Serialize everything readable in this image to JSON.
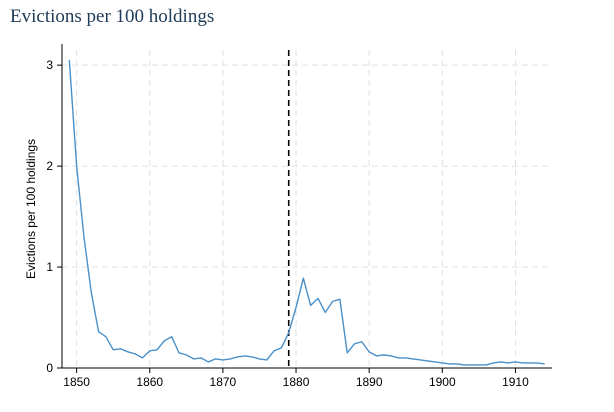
{
  "page": {
    "title": "Evictions per 100 holdings"
  },
  "chart_data": {
    "type": "line",
    "title": "",
    "xlabel": "",
    "ylabel": "Evictions per 100 holdings",
    "xlim": [
      1848,
      1915
    ],
    "ylim": [
      0,
      3.15
    ],
    "x_ticks": [
      1850,
      1860,
      1870,
      1880,
      1890,
      1900,
      1910
    ],
    "y_ticks": [
      0,
      1,
      2,
      3
    ],
    "grid": true,
    "reference_line": {
      "x": 1879,
      "style": "dashed",
      "color": "#000000"
    },
    "colors": {
      "series": "#4a90c9",
      "grid": "#e0e0e0",
      "axis": "#000000"
    },
    "series": [
      {
        "name": "",
        "x": [
          1849,
          1850,
          1851,
          1852,
          1853,
          1854,
          1855,
          1856,
          1857,
          1858,
          1859,
          1860,
          1861,
          1862,
          1863,
          1864,
          1865,
          1866,
          1867,
          1868,
          1869,
          1870,
          1871,
          1872,
          1873,
          1874,
          1875,
          1876,
          1877,
          1878,
          1879,
          1880,
          1881,
          1882,
          1883,
          1884,
          1885,
          1886,
          1887,
          1888,
          1889,
          1890,
          1891,
          1892,
          1893,
          1894,
          1895,
          1896,
          1897,
          1898,
          1899,
          1900,
          1901,
          1902,
          1903,
          1904,
          1905,
          1906,
          1907,
          1908,
          1909,
          1910,
          1911,
          1912,
          1913,
          1914
        ],
        "y": [
          3.05,
          2.0,
          1.3,
          0.75,
          0.36,
          0.31,
          0.18,
          0.19,
          0.16,
          0.14,
          0.1,
          0.17,
          0.18,
          0.27,
          0.31,
          0.15,
          0.13,
          0.09,
          0.1,
          0.06,
          0.09,
          0.08,
          0.09,
          0.11,
          0.12,
          0.11,
          0.09,
          0.08,
          0.17,
          0.2,
          0.35,
          0.6,
          0.89,
          0.62,
          0.69,
          0.55,
          0.66,
          0.68,
          0.15,
          0.24,
          0.26,
          0.16,
          0.12,
          0.13,
          0.12,
          0.1,
          0.1,
          0.09,
          0.08,
          0.07,
          0.06,
          0.05,
          0.04,
          0.04,
          0.03,
          0.03,
          0.03,
          0.03,
          0.05,
          0.06,
          0.05,
          0.06,
          0.05,
          0.05,
          0.05,
          0.04
        ]
      }
    ]
  }
}
